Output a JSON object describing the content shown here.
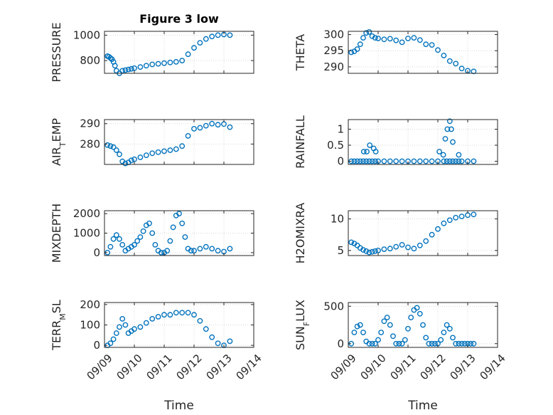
{
  "figure": {
    "title": "Figure 3 low",
    "xlabel": "Time"
  },
  "colors": {
    "marker": "#0072BD",
    "axis": "#262626",
    "grid": "#d9d9d9"
  },
  "chart_data": [
    {
      "type": "scatter",
      "ylabel_parts": [
        [
          "PRESSURE",
          false
        ]
      ],
      "x": [
        9.1,
        9.15,
        9.2,
        9.25,
        9.3,
        9.35,
        9.4,
        9.5,
        9.6,
        9.7,
        9.8,
        9.9,
        10.0,
        10.2,
        10.4,
        10.6,
        10.8,
        11.0,
        11.2,
        11.4,
        11.6,
        11.8,
        12.0,
        12.2,
        12.4,
        12.6,
        12.8,
        13.0,
        13.2
      ],
      "y": [
        835,
        830,
        820,
        810,
        790,
        760,
        720,
        700,
        720,
        725,
        730,
        735,
        740,
        750,
        760,
        770,
        775,
        780,
        785,
        790,
        800,
        850,
        900,
        940,
        970,
        990,
        1000,
        1005,
        1000
      ],
      "ylim": [
        700,
        1030
      ],
      "yticks": [
        800,
        1000
      ],
      "xlim": [
        9,
        14
      ]
    },
    {
      "type": "scatter",
      "ylabel_parts": [
        [
          "THETA",
          false
        ]
      ],
      "x": [
        9.1,
        9.2,
        9.3,
        9.4,
        9.5,
        9.6,
        9.7,
        9.8,
        9.9,
        10.0,
        10.2,
        10.4,
        10.6,
        10.8,
        11.0,
        11.2,
        11.4,
        11.6,
        11.8,
        12.0,
        12.2,
        12.4,
        12.6,
        12.8,
        13.0,
        13.2
      ],
      "y": [
        294.5,
        294.8,
        295.5,
        297,
        299,
        300.5,
        300.8,
        299.5,
        299,
        298.8,
        298.5,
        298.7,
        298.2,
        297.6,
        298.8,
        299.0,
        298.3,
        297.0,
        296.8,
        295.2,
        293.5,
        291.8,
        291.0,
        289.5,
        288.8,
        288.6
      ],
      "ylim": [
        288,
        301
      ],
      "yticks": [
        290,
        295,
        300
      ],
      "xlim": [
        9,
        14
      ]
    },
    {
      "type": "scatter",
      "ylabel_parts": [
        [
          "AIR",
          false
        ],
        [
          "T",
          true
        ],
        [
          "EMP",
          false
        ]
      ],
      "x": [
        9.1,
        9.2,
        9.3,
        9.4,
        9.5,
        9.6,
        9.7,
        9.8,
        9.9,
        10.0,
        10.2,
        10.4,
        10.6,
        10.8,
        11.0,
        11.2,
        11.4,
        11.6,
        11.8,
        12.0,
        12.2,
        12.4,
        12.6,
        12.8,
        13.0,
        13.2
      ],
      "y": [
        279.5,
        279,
        278.5,
        277,
        275,
        271.5,
        270.5,
        271,
        272,
        272.5,
        273.5,
        274.5,
        275.5,
        276,
        276.5,
        277,
        277.5,
        279,
        284,
        287.5,
        288,
        289,
        290,
        289.5,
        289.8,
        288.3
      ],
      "ylim": [
        270,
        292
      ],
      "yticks": [
        280,
        290
      ],
      "xlim": [
        9,
        14
      ]
    },
    {
      "type": "scatter",
      "ylabel_parts": [
        [
          "RAINFALL",
          false
        ]
      ],
      "x": [
        9.1,
        9.2,
        9.3,
        9.4,
        9.5,
        9.6,
        9.7,
        9.8,
        9.9,
        10.0,
        10.2,
        10.4,
        10.6,
        10.8,
        11.0,
        11.2,
        11.4,
        11.6,
        11.8,
        12.0,
        12.2,
        12.3,
        12.4,
        12.5,
        12.6,
        12.7,
        12.8,
        13.0,
        13.2,
        9.52,
        9.62,
        9.72,
        9.85,
        9.92,
        12.05,
        12.18,
        12.25,
        12.32,
        12.4,
        12.45,
        12.5,
        12.7
      ],
      "y": [
        0,
        0,
        0,
        0,
        0,
        0,
        0,
        0,
        0,
        0,
        0,
        0,
        0,
        0,
        0,
        0,
        0,
        0,
        0,
        0,
        0,
        0,
        0,
        0,
        0,
        0,
        0,
        0,
        0,
        0.3,
        0.3,
        0.5,
        0.4,
        0.3,
        0.3,
        0.2,
        0.7,
        1.0,
        1.25,
        1.0,
        0.6,
        0.2
      ],
      "ylim": [
        -0.1,
        1.3
      ],
      "yticks": [
        0,
        0.5,
        1
      ],
      "xlim": [
        9,
        14
      ]
    },
    {
      "type": "scatter",
      "ylabel_parts": [
        [
          "MIXDEPTH",
          false
        ]
      ],
      "x": [
        9.1,
        9.2,
        9.3,
        9.4,
        9.5,
        9.6,
        9.7,
        9.8,
        9.9,
        10.0,
        10.1,
        10.2,
        10.3,
        10.4,
        10.5,
        10.6,
        10.7,
        10.8,
        10.9,
        11.0,
        11.1,
        11.2,
        11.3,
        11.4,
        11.5,
        11.6,
        11.7,
        11.8,
        11.9,
        12.0,
        12.2,
        12.4,
        12.6,
        12.8,
        13.0,
        13.2
      ],
      "y": [
        0,
        300,
        700,
        900,
        700,
        400,
        100,
        200,
        300,
        400,
        600,
        800,
        1100,
        1400,
        1500,
        1000,
        400,
        100,
        0,
        0,
        100,
        600,
        1300,
        1900,
        2000,
        1500,
        800,
        200,
        100,
        100,
        200,
        300,
        200,
        100,
        50,
        200
      ],
      "ylim": [
        -150,
        2150
      ],
      "yticks": [
        0,
        1000,
        2000
      ],
      "xlim": [
        9,
        14
      ]
    },
    {
      "type": "scatter",
      "ylabel_parts": [
        [
          "H2OMIXRA",
          false
        ]
      ],
      "x": [
        9.1,
        9.2,
        9.3,
        9.4,
        9.5,
        9.6,
        9.7,
        9.8,
        9.9,
        10.0,
        10.2,
        10.4,
        10.6,
        10.8,
        11.0,
        11.2,
        11.4,
        11.6,
        11.8,
        12.0,
        12.2,
        12.4,
        12.6,
        12.8,
        13.0,
        13.2
      ],
      "y": [
        6.3,
        6.1,
        5.8,
        5.4,
        5.1,
        4.9,
        4.7,
        4.8,
        4.9,
        5.0,
        5.2,
        5.3,
        5.6,
        5.9,
        5.5,
        5.3,
        5.8,
        6.5,
        7.5,
        8.4,
        9.3,
        9.8,
        10.2,
        10.4,
        10.6,
        10.7
      ],
      "ylim": [
        4.2,
        11.3
      ],
      "yticks": [
        5,
        10
      ],
      "xlim": [
        9,
        14
      ]
    },
    {
      "type": "scatter",
      "ylabel_parts": [
        [
          "TERR",
          false
        ],
        [
          "M",
          true
        ],
        [
          "SL",
          false
        ]
      ],
      "x": [
        9.1,
        9.2,
        9.3,
        9.4,
        9.5,
        9.6,
        9.7,
        9.8,
        9.9,
        10.0,
        10.2,
        10.4,
        10.6,
        10.8,
        11.0,
        11.2,
        11.4,
        11.6,
        11.8,
        12.0,
        12.2,
        12.4,
        12.6,
        12.8,
        13.0,
        13.2
      ],
      "y": [
        0,
        10,
        30,
        60,
        90,
        130,
        100,
        60,
        70,
        80,
        90,
        110,
        130,
        140,
        150,
        150,
        160,
        160,
        160,
        150,
        120,
        80,
        40,
        10,
        0,
        20
      ],
      "ylim": [
        -10,
        210
      ],
      "yticks": [
        0,
        100,
        200
      ],
      "xlim": [
        9,
        14
      ]
    },
    {
      "type": "scatter",
      "ylabel_parts": [
        [
          "SUN",
          false
        ],
        [
          "F",
          true
        ],
        [
          "LUX",
          false
        ]
      ],
      "x": [
        9.1,
        9.2,
        9.3,
        9.4,
        9.5,
        9.6,
        9.7,
        9.8,
        9.9,
        10.0,
        10.1,
        10.2,
        10.3,
        10.4,
        10.5,
        10.6,
        10.7,
        10.8,
        10.9,
        11.0,
        11.1,
        11.2,
        11.3,
        11.4,
        11.5,
        11.6,
        11.7,
        11.8,
        11.9,
        12.0,
        12.1,
        12.2,
        12.3,
        12.4,
        12.5,
        12.6,
        12.7,
        12.8,
        12.9,
        13.0,
        13.1,
        13.2
      ],
      "y": [
        0,
        150,
        230,
        250,
        150,
        30,
        0,
        0,
        0,
        50,
        150,
        300,
        350,
        250,
        100,
        0,
        0,
        0,
        50,
        200,
        350,
        450,
        480,
        400,
        250,
        80,
        0,
        0,
        0,
        0,
        50,
        150,
        250,
        200,
        80,
        0,
        0,
        0,
        0,
        0,
        0,
        0
      ],
      "ylim": [
        -50,
        550
      ],
      "yticks": [
        0,
        500
      ],
      "xlim": [
        9,
        14
      ]
    }
  ],
  "xtick_labels": [
    "09/09",
    "09/10",
    "09/11",
    "09/12",
    "09/13",
    "09/14"
  ]
}
